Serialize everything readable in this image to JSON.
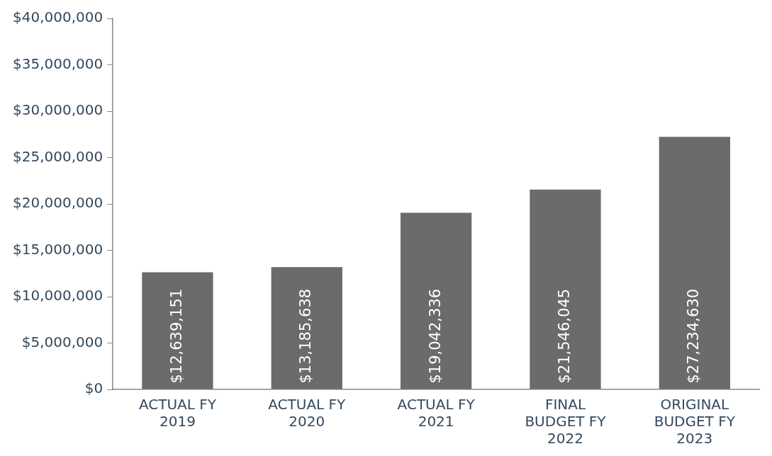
{
  "chart_data": {
    "type": "bar",
    "categories": [
      "ACTUAL FY 2019",
      "ACTUAL FY 2020",
      "ACTUAL FY 2021",
      "FINAL BUDGET FY 2022",
      "ORIGINAL BUDGET FY 2023"
    ],
    "values": [
      12639151,
      13185638,
      19042336,
      21546045,
      27234630
    ],
    "value_labels": [
      "$12,639,151",
      "$13,185,638",
      "$19,042,336",
      "$21,546,045",
      "$27,234,630"
    ],
    "color": "#6b6b6b",
    "ylim": [
      0,
      40000000
    ],
    "yticks": [
      {
        "value": 0,
        "label": "$0"
      },
      {
        "value": 5000000,
        "label": "$5,000,000"
      },
      {
        "value": 10000000,
        "label": "$10,000,000"
      },
      {
        "value": 15000000,
        "label": "$15,000,000"
      },
      {
        "value": 20000000,
        "label": "$20,000,000"
      },
      {
        "value": 25000000,
        "label": "$25,000,000"
      },
      {
        "value": 30000000,
        "label": "$30,000,000"
      },
      {
        "value": 35000000,
        "label": "$35,000,000"
      },
      {
        "value": 40000000,
        "label": "$40,000,000"
      }
    ],
    "grid": false,
    "legend": false
  }
}
